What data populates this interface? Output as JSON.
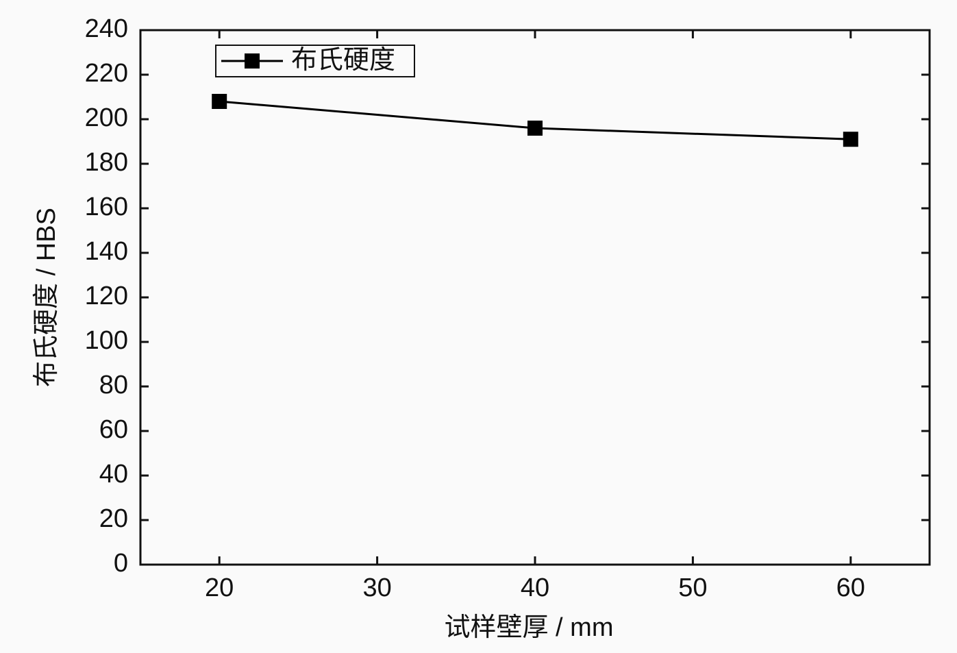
{
  "chart_data": {
    "type": "line",
    "x_label": "试样壁厚 / mm",
    "y_label": "布氏硬度 / HBS",
    "x": [
      20,
      40,
      60
    ],
    "series": [
      {
        "name": "布氏硬度",
        "color": "#000000",
        "values": [
          208,
          196,
          191
        ]
      }
    ],
    "xlim": [
      15,
      65
    ],
    "xticks": [
      20,
      30,
      40,
      50,
      60
    ],
    "ylim": [
      0,
      240
    ],
    "yticks": [
      0,
      20,
      40,
      60,
      80,
      100,
      120,
      140,
      160,
      180,
      200,
      220,
      240
    ],
    "grid": false,
    "legend": "upper left"
  }
}
